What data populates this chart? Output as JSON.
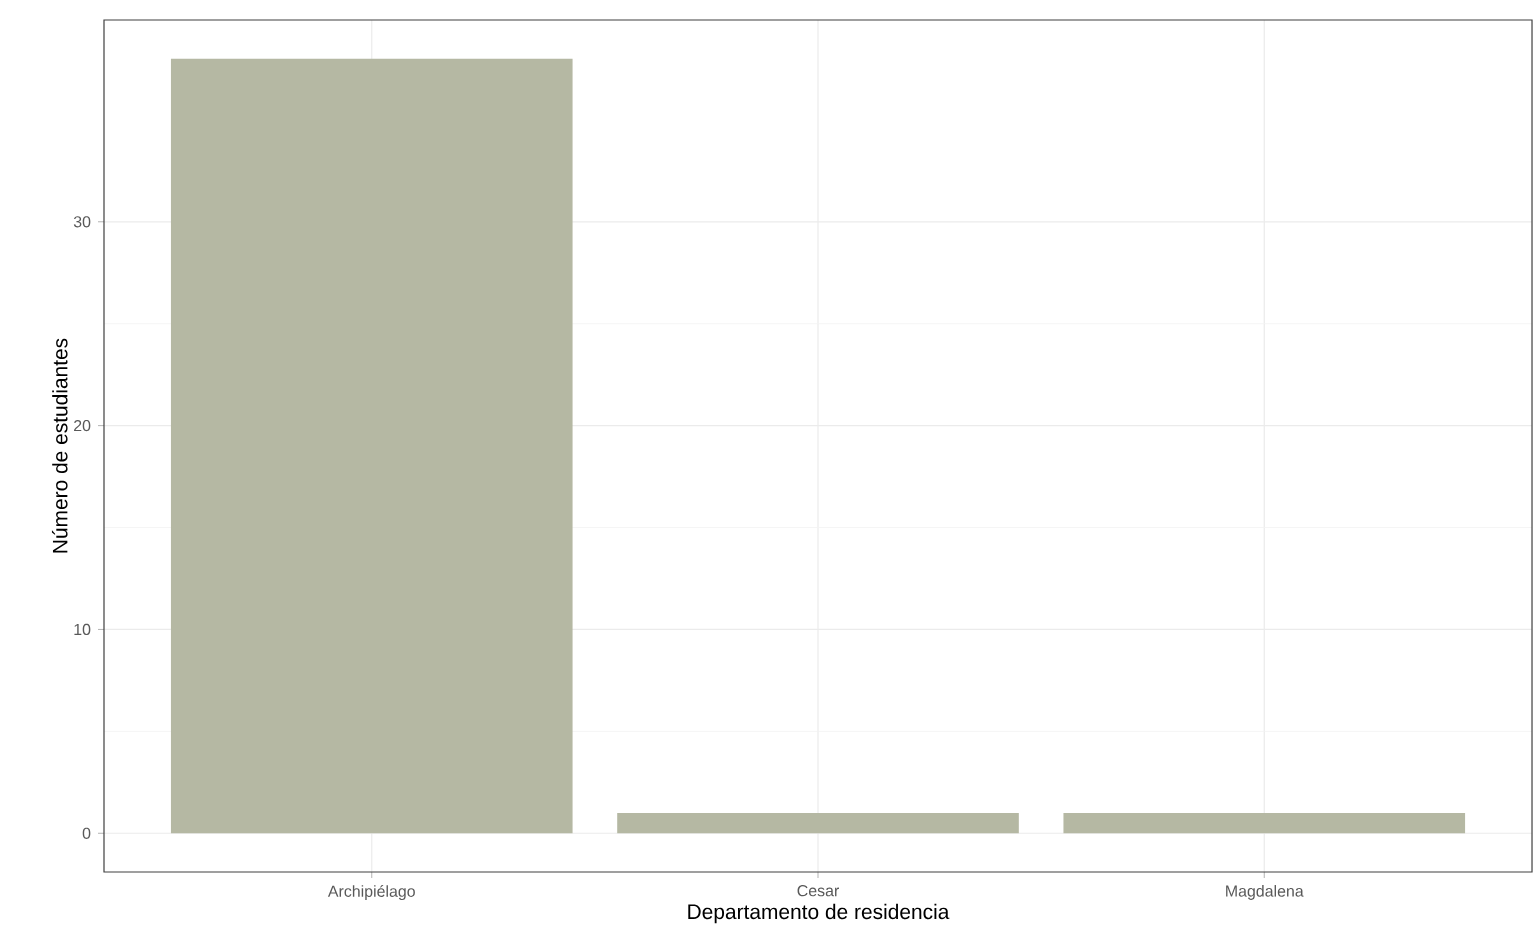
{
  "chart_data": {
    "type": "bar",
    "xlabel": "Departamento de residencia",
    "ylabel": "Número de estudiantes",
    "categories": [
      "Archipiélago",
      "Cesar",
      "Magdalena"
    ],
    "values": [
      38,
      1,
      1
    ],
    "color": "#b5b8a3",
    "ylim": [
      -1.9,
      39.9
    ],
    "yticks": [
      0,
      10,
      20,
      30
    ],
    "grid": true
  }
}
